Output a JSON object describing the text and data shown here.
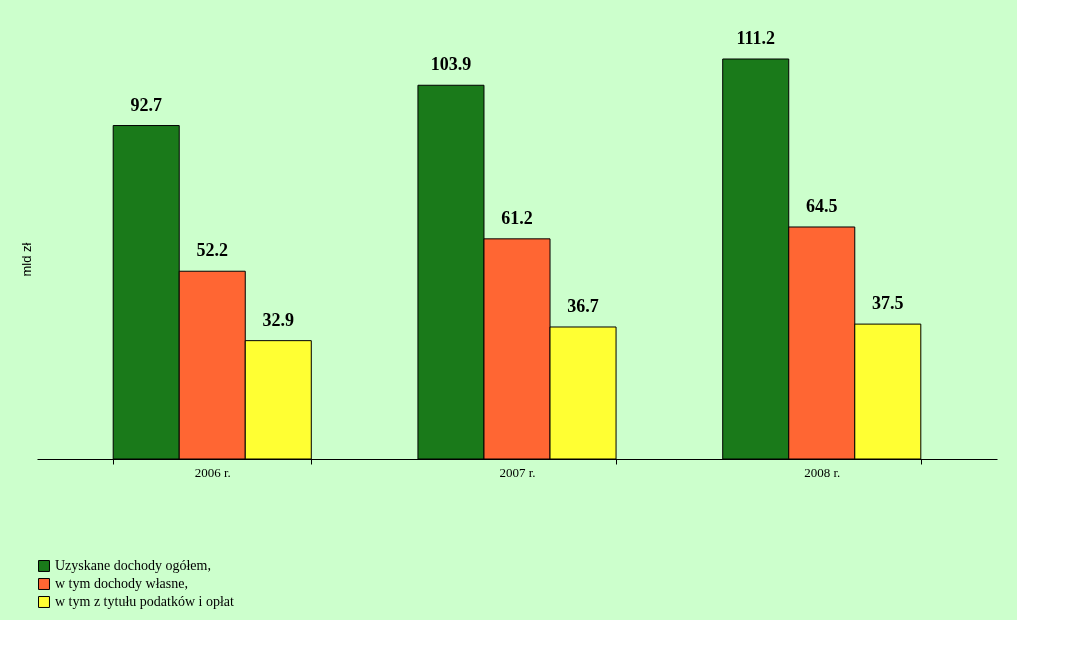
{
  "chart_data": {
    "type": "bar",
    "ylabel": "mld zł",
    "categories": [
      "2006 r.",
      "2007 r.",
      "2008 r."
    ],
    "series": [
      {
        "name": "Uzyskane dochody ogółem,",
        "color": "#1a7a1a",
        "values": [
          92.7,
          103.9,
          111.2
        ]
      },
      {
        "name": "w tym dochody własne,",
        "color": "#ff6633",
        "values": [
          52.2,
          61.2,
          64.5
        ]
      },
      {
        "name": "w tym z tytułu podatków i opłat",
        "color": "#ffff33",
        "values": [
          32.9,
          36.7,
          37.5
        ]
      }
    ],
    "data_labels": true,
    "legend": "bottom",
    "grid": false
  }
}
